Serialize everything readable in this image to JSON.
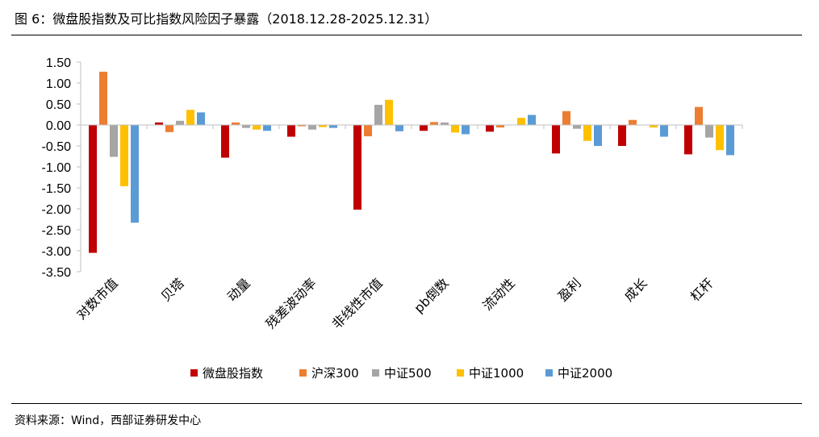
{
  "title": "图 6：微盘股指数及可比指数风险因子暴露（2018.12.28-2025.12.31）",
  "source": "资料来源：Wind，西部证券研发中心",
  "chart_data": {
    "type": "bar",
    "categories": [
      "对数市值",
      "贝塔",
      "动量",
      "残差波动率",
      "非线性市值",
      "pb倒数",
      "流动性",
      "盈利",
      "成长",
      "杠杆"
    ],
    "series": [
      {
        "name": "微盘股指数",
        "color": "#C00000",
        "values": [
          -3.05,
          0.06,
          -0.78,
          -0.28,
          -2.02,
          -0.14,
          -0.16,
          -0.68,
          -0.5,
          -0.7
        ]
      },
      {
        "name": "沪深300",
        "color": "#ED7D31",
        "values": [
          1.27,
          -0.17,
          0.06,
          -0.03,
          -0.27,
          0.07,
          -0.06,
          0.33,
          0.12,
          0.43
        ]
      },
      {
        "name": "中证500",
        "color": "#A5A5A5",
        "values": [
          -0.76,
          0.1,
          -0.07,
          -0.11,
          0.48,
          0.06,
          0.0,
          -0.09,
          0.0,
          -0.3
        ]
      },
      {
        "name": "中证1000",
        "color": "#FFC000",
        "values": [
          -1.46,
          0.36,
          -0.11,
          -0.05,
          0.6,
          -0.18,
          0.17,
          -0.38,
          -0.06,
          -0.6
        ]
      },
      {
        "name": "中证2000",
        "color": "#5B9BD5",
        "values": [
          -2.33,
          0.3,
          -0.14,
          -0.07,
          -0.15,
          -0.22,
          0.24,
          -0.5,
          -0.28,
          -0.72
        ]
      }
    ],
    "ylim": [
      -3.5,
      1.5
    ],
    "yticks": [
      "1.50",
      "1.00",
      "0.50",
      "0.00",
      "-0.50",
      "-1.00",
      "-1.50",
      "-2.00",
      "-2.50",
      "-3.00",
      "-3.50"
    ],
    "grid": false,
    "legend_position": "bottom"
  }
}
